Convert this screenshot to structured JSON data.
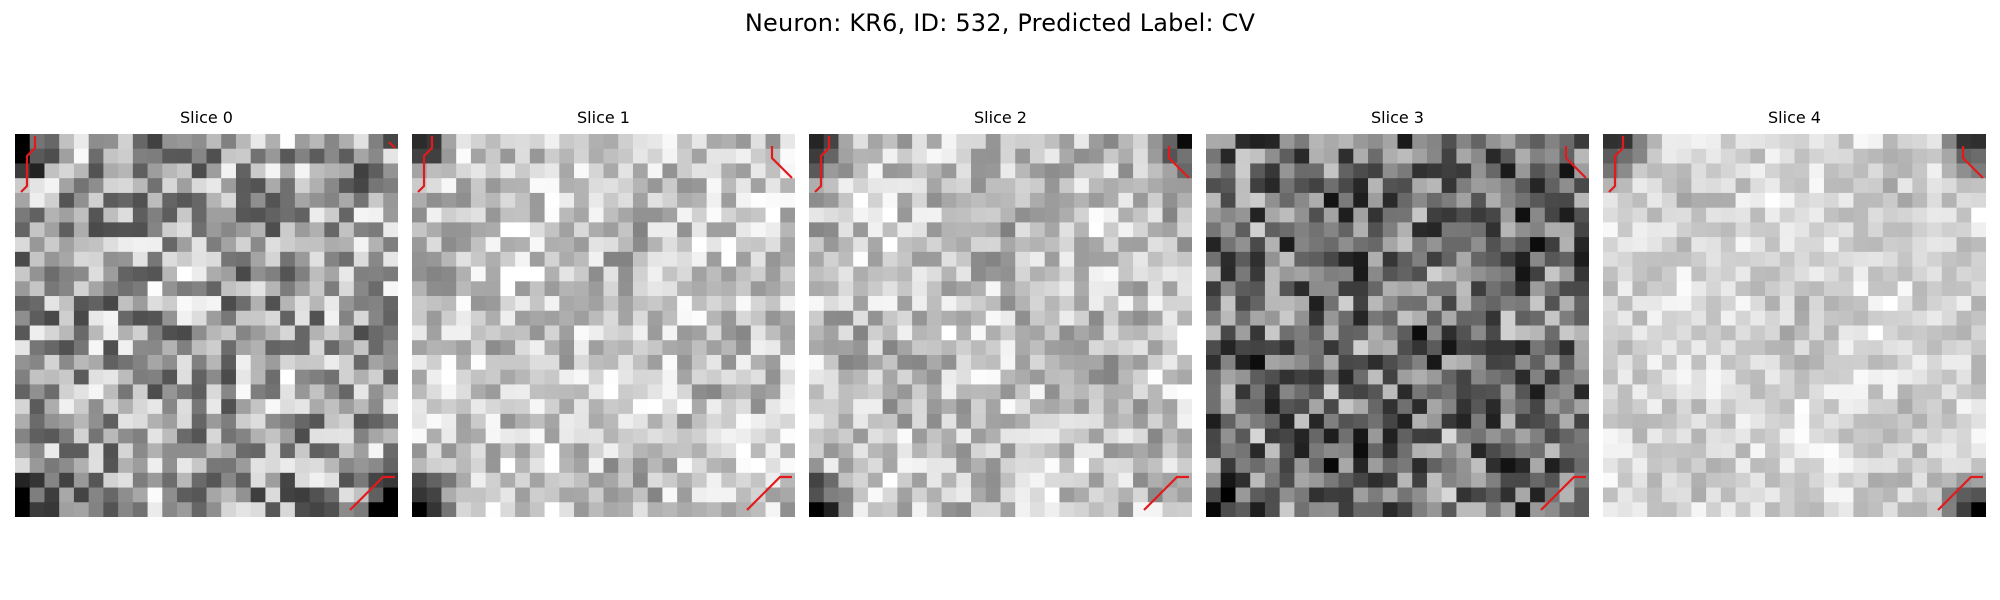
{
  "figure": {
    "title": "Neuron: KR6, ID: 532, Predicted Label: CV"
  },
  "slices": [
    {
      "title": "Slice 0",
      "base_gray": 0.62,
      "noise": 0.34,
      "dark_corners": [
        "top-left",
        "bottom-left",
        "bottom-right"
      ],
      "red_contours": [
        "top-left",
        "bottom-right",
        "top-right-tick"
      ]
    },
    {
      "title": "Slice 1",
      "base_gray": 0.78,
      "noise": 0.22,
      "dark_corners": [
        "top-left",
        "bottom-left"
      ],
      "red_contours": [
        "top-left",
        "top-right",
        "bottom-right"
      ]
    },
    {
      "title": "Slice 2",
      "base_gray": 0.76,
      "noise": 0.22,
      "dark_corners": [
        "top-left",
        "top-right",
        "bottom-left"
      ],
      "red_contours": [
        "top-left",
        "top-right",
        "bottom-right"
      ]
    },
    {
      "title": "Slice 3",
      "base_gray": 0.45,
      "noise": 0.36,
      "dark_corners": [
        "bottom-left"
      ],
      "red_contours": [
        "top-right",
        "bottom-right"
      ]
    },
    {
      "title": "Slice 4",
      "base_gray": 0.83,
      "noise": 0.14,
      "dark_corners": [
        "top-left",
        "top-right",
        "bottom-right"
      ],
      "red_contours": [
        "top-left",
        "top-right",
        "bottom-right"
      ]
    }
  ],
  "colors": {
    "contour": "#e31a1c",
    "background": "#ffffff"
  }
}
